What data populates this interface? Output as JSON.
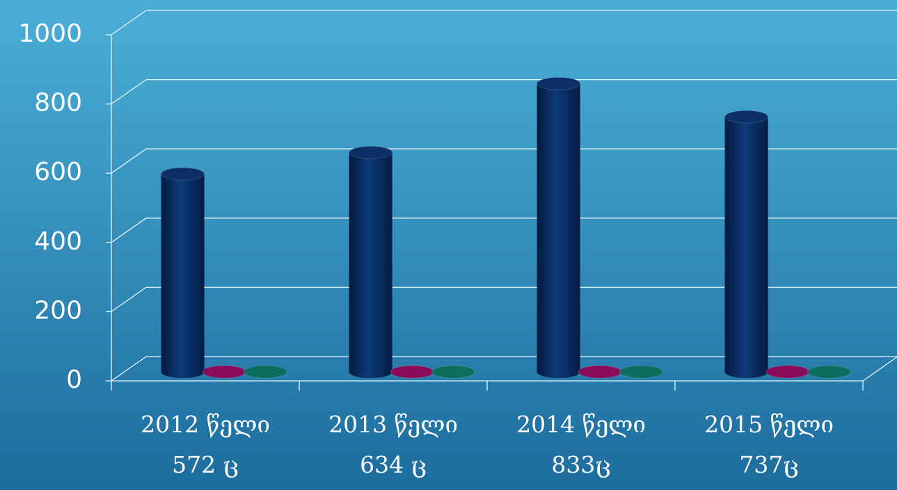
{
  "chart_data": {
    "type": "bar3d",
    "categories": [
      "2012 წელი\n572 ც",
      "2013 წელი\n634 ც",
      "2014 წელი\n833ც",
      "2015 წელი\n737ც"
    ],
    "series": [
      {
        "color": "#0b2f66",
        "values": [
          572,
          634,
          833,
          737
        ]
      },
      {
        "color": "#8a0a5c",
        "values": [
          0,
          0,
          0,
          0
        ]
      },
      {
        "color": "#0b6e5e",
        "values": [
          0,
          0,
          0,
          0
        ]
      }
    ],
    "ylim": [
      0,
      1000
    ],
    "yticks": [
      0,
      200,
      400,
      600,
      800,
      1000
    ],
    "grid": true
  }
}
